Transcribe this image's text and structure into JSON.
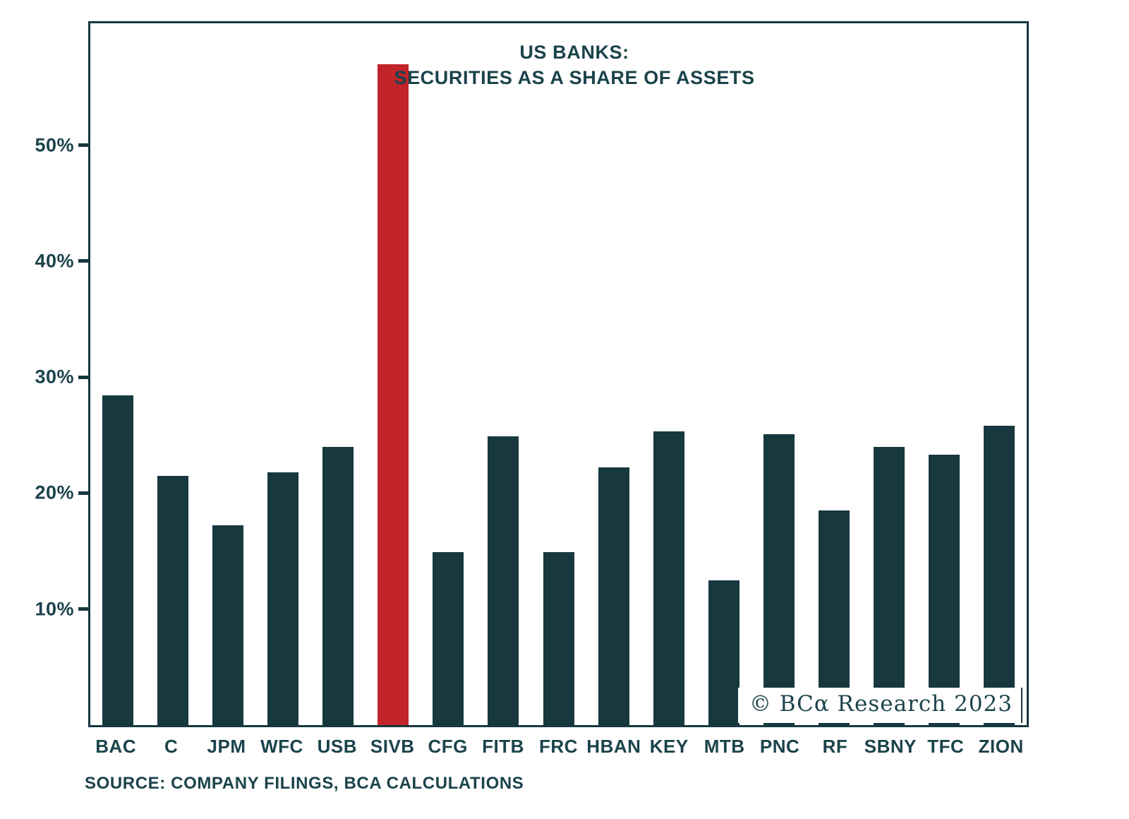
{
  "title_line1": "US BANKS:",
  "title_line2": "SECURITIES AS A SHARE OF ASSETS",
  "source_note": "SOURCE: COMPANY FILINGS, BCA CALCULATIONS",
  "watermark": "© BCα Research 2023",
  "colors": {
    "bar": "#17383f",
    "highlight": "#c2242b",
    "text": "#1b434b",
    "border": "#17383f",
    "background": "#ffffff"
  },
  "chart_data": {
    "type": "bar",
    "title": "US BANKS: SECURITIES AS A SHARE OF ASSETS",
    "xlabel": "",
    "ylabel": "",
    "categories": [
      "BAC",
      "C",
      "JPM",
      "WFC",
      "USB",
      "SIVB",
      "CFG",
      "FITB",
      "FRC",
      "HBAN",
      "KEY",
      "MTB",
      "PNC",
      "RF",
      "SBNY",
      "TFC",
      "ZION"
    ],
    "values": [
      28.4,
      21.5,
      17.2,
      21.8,
      24.0,
      57.0,
      14.9,
      24.9,
      14.9,
      22.2,
      25.3,
      12.5,
      25.1,
      18.5,
      24.0,
      23.3,
      25.8
    ],
    "unit": "%",
    "highlight_category": "SIVB",
    "ylim": [
      0,
      60.5
    ],
    "ytick_values": [
      10,
      20,
      30,
      40,
      50
    ],
    "ytick_labels": [
      "10%",
      "20%",
      "30%",
      "40%",
      "50%"
    ],
    "grid": false,
    "legend": false
  }
}
